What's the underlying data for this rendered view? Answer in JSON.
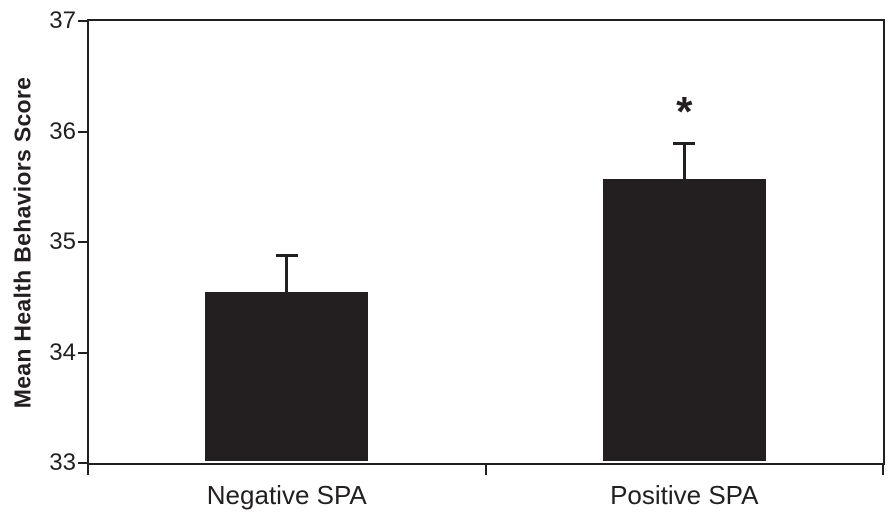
{
  "chart_data": {
    "type": "bar",
    "title": "",
    "xlabel": "",
    "ylabel": "Mean Health Behaviors Score",
    "categories": [
      "Negative SPA",
      "Positive SPA"
    ],
    "values": [
      34.55,
      35.57
    ],
    "error_bars": [
      0.33,
      0.33
    ],
    "annotations": [
      "",
      "*"
    ],
    "ylim": [
      33,
      37
    ],
    "yticks": [
      33,
      34,
      35,
      36,
      37
    ],
    "grid": false,
    "legend": "none",
    "bar_color": "#231f20",
    "axis_color": "#231f20",
    "background_color": "#ffffff"
  }
}
